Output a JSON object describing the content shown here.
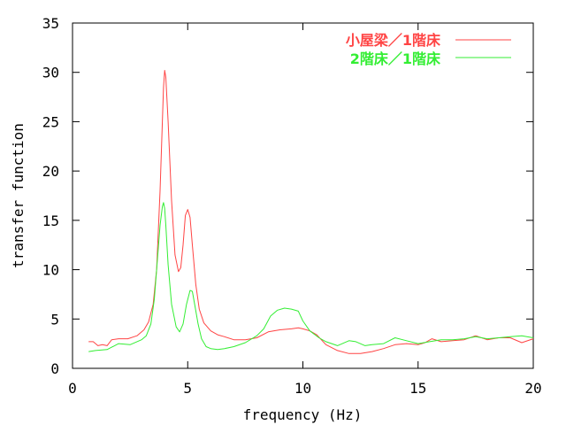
{
  "chart_data": {
    "type": "line",
    "title": "",
    "xlabel": "frequency (Hz)",
    "ylabel": "transfer function",
    "xlim": [
      0,
      20
    ],
    "ylim": [
      0,
      35
    ],
    "xticks": [
      0,
      5,
      10,
      15,
      20
    ],
    "yticks": [
      0,
      5,
      10,
      15,
      20,
      25,
      30,
      35
    ],
    "grid": false,
    "legend_position": "top-right",
    "series": [
      {
        "name": "小屋梁／1階床",
        "color": "#ff4444",
        "x": [
          0.7,
          0.9,
          1.1,
          1.3,
          1.5,
          1.7,
          2.0,
          2.4,
          2.8,
          3.1,
          3.3,
          3.5,
          3.65,
          3.8,
          3.9,
          3.95,
          4.0,
          4.05,
          4.15,
          4.3,
          4.45,
          4.6,
          4.7,
          4.8,
          4.9,
          5.0,
          5.1,
          5.2,
          5.35,
          5.5,
          5.7,
          6.0,
          6.3,
          6.6,
          7.0,
          7.5,
          8.0,
          8.5,
          9.0,
          9.5,
          9.8,
          10.0,
          10.3,
          10.6,
          11.0,
          11.5,
          12.0,
          12.5,
          13.0,
          13.5,
          14.0,
          14.5,
          15.0,
          15.3,
          15.6,
          16.0,
          16.5,
          17.0,
          17.5,
          18.0,
          18.5,
          19.0,
          19.5,
          20.0
        ],
        "y": [
          2.7,
          2.7,
          2.3,
          2.4,
          2.3,
          2.9,
          3.0,
          3.0,
          3.3,
          3.9,
          4.7,
          6.5,
          10.0,
          18.0,
          25.0,
          28.5,
          30.2,
          29.5,
          25.0,
          17.0,
          11.5,
          9.8,
          10.2,
          12.5,
          15.5,
          16.1,
          15.3,
          12.5,
          8.5,
          6.0,
          4.6,
          3.8,
          3.4,
          3.2,
          2.9,
          2.9,
          3.1,
          3.7,
          3.9,
          4.0,
          4.1,
          4.0,
          3.8,
          3.4,
          2.4,
          1.8,
          1.5,
          1.5,
          1.7,
          2.0,
          2.4,
          2.5,
          2.4,
          2.6,
          3.0,
          2.7,
          2.8,
          2.9,
          3.3,
          2.9,
          3.1,
          3.1,
          2.6,
          3.0
        ]
      },
      {
        "name": "2階床／1階床",
        "color": "#33ee33",
        "x": [
          0.7,
          1.0,
          1.5,
          2.0,
          2.5,
          3.0,
          3.2,
          3.4,
          3.55,
          3.7,
          3.8,
          3.9,
          3.95,
          4.0,
          4.05,
          4.15,
          4.3,
          4.5,
          4.65,
          4.8,
          4.95,
          5.1,
          5.2,
          5.3,
          5.45,
          5.6,
          5.8,
          6.0,
          6.3,
          6.6,
          7.0,
          7.5,
          8.0,
          8.3,
          8.6,
          8.9,
          9.2,
          9.5,
          9.8,
          10.0,
          10.3,
          10.7,
          11.0,
          11.5,
          12.0,
          12.3,
          12.7,
          13.0,
          13.5,
          14.0,
          14.5,
          15.0,
          15.5,
          16.0,
          16.5,
          17.0,
          17.5,
          18.0,
          18.5,
          19.0,
          19.5,
          20.0
        ],
        "y": [
          1.7,
          1.8,
          1.9,
          2.5,
          2.4,
          2.9,
          3.3,
          4.5,
          7.0,
          11.5,
          14.5,
          16.4,
          16.8,
          16.2,
          14.5,
          10.5,
          6.5,
          4.2,
          3.7,
          4.5,
          6.5,
          7.9,
          7.8,
          6.5,
          4.5,
          3.0,
          2.2,
          2.0,
          1.9,
          2.0,
          2.2,
          2.6,
          3.3,
          4.0,
          5.3,
          5.9,
          6.1,
          6.0,
          5.8,
          4.8,
          3.8,
          3.1,
          2.7,
          2.3,
          2.8,
          2.7,
          2.3,
          2.4,
          2.5,
          3.1,
          2.8,
          2.5,
          2.7,
          2.9,
          2.9,
          3.0,
          3.2,
          3.0,
          3.1,
          3.2,
          3.3,
          3.1
        ]
      }
    ]
  }
}
